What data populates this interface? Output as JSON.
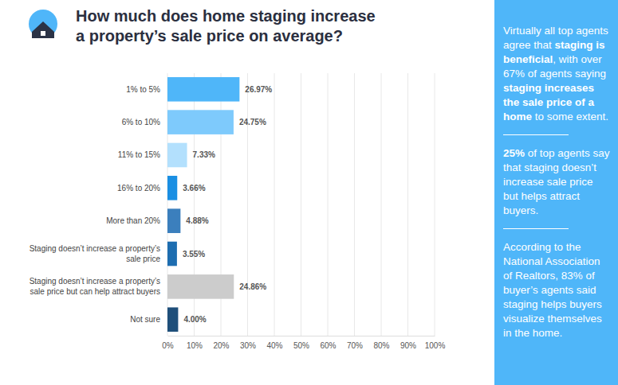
{
  "chart_data": {
    "type": "bar",
    "orientation": "horizontal",
    "title": "How much does home staging increase a property’s sale price on average?",
    "categories": [
      "1% to 5%",
      "6% to 10%",
      "11% to 15%",
      "16% to 20%",
      "More than 20%",
      "Staging doesn’t increase a property’s sale price",
      "Staging doesn’t increase a property’s sale price but can help attract buyers",
      "Not sure"
    ],
    "values": [
      26.97,
      24.75,
      7.33,
      3.66,
      4.88,
      3.55,
      24.86,
      4.0
    ],
    "value_labels": [
      "26.97%",
      "24.75%",
      "7.33%",
      "3.66%",
      "4.88%",
      "3.55%",
      "24.86%",
      "4.00%"
    ],
    "data_labels": true,
    "colors": [
      "#4fb6f9",
      "#7ecafc",
      "#b3e0fd",
      "#1a8fe3",
      "#3b7fbd",
      "#1d6db0",
      "#cccccc",
      "#1f4f7a"
    ],
    "xlim": [
      0,
      100
    ],
    "xticks": [
      {
        "value": 0,
        "label": "0%"
      },
      {
        "value": 10,
        "label": "10%"
      },
      {
        "value": 20,
        "label": "20%"
      },
      {
        "value": 30,
        "label": "30%"
      },
      {
        "value": 40,
        "label": "40%"
      },
      {
        "value": 50,
        "label": "50%"
      },
      {
        "value": 60,
        "label": "60%"
      },
      {
        "value": 70,
        "label": "70%"
      },
      {
        "value": 80,
        "label": "80%"
      },
      {
        "value": 90,
        "label": "90%"
      },
      {
        "value": 100,
        "label": "100%"
      }
    ],
    "grid": true,
    "annotations": [
      [
        {
          "text": "Virtually all top agents agree that "
        },
        {
          "text": "staging is beneficial",
          "bold": true
        },
        {
          "text": ", with over 67% of agents saying "
        },
        {
          "text": "staging increases the sale price of a home",
          "bold": true
        },
        {
          "text": " to some extent."
        }
      ],
      [
        {
          "text": "25%",
          "bold": true
        },
        {
          "text": " of top agents say that staging doesn’t increase sale price but helps attract buyers."
        }
      ],
      [
        {
          "text": "According to the National Association of Realtors, 83% of buyer’s agents said staging helps buyers visualize themselves in the home."
        }
      ]
    ]
  }
}
